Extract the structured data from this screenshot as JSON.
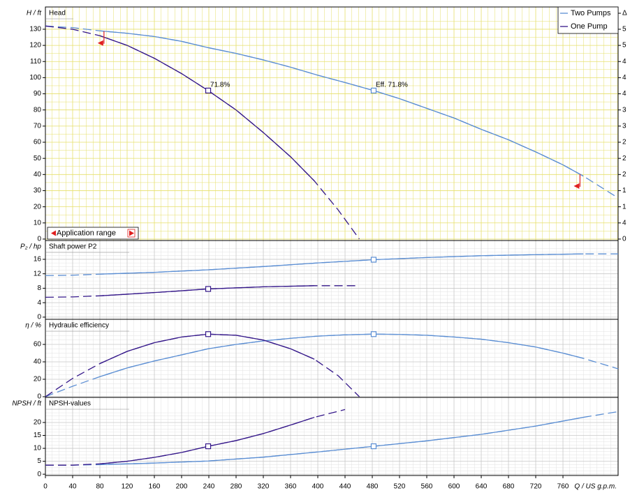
{
  "chart_data": [
    {
      "type": "line",
      "title": "Head",
      "ylabel": "H / ft",
      "xlim": [
        0,
        841
      ],
      "ylim": [
        -0.9,
        143.8
      ],
      "yticks": [
        0,
        10,
        20,
        30,
        40,
        50,
        60,
        70,
        80,
        90,
        100,
        110,
        120,
        130
      ],
      "grid": true,
      "grid_color": "#e6df6a",
      "y2_labels": [
        "Δ",
        "5",
        "5",
        "4",
        "4",
        "4",
        "3",
        "3",
        "2",
        "2",
        "2",
        "1",
        "1",
        "4",
        "0"
      ],
      "application_range": {
        "text": "Application range",
        "x": [
          86,
          785
        ]
      },
      "legend": "upper right",
      "series": [
        {
          "name": "Two Pumps",
          "color": "#5b8ed3",
          "solid": [
            80,
            790
          ],
          "point_x": 482,
          "point_label": "Eff.  71.8%",
          "x": [
            0,
            40,
            80,
            120,
            160,
            200,
            240,
            280,
            320,
            360,
            400,
            440,
            482,
            520,
            560,
            600,
            640,
            680,
            720,
            760,
            790,
            841
          ],
          "values": [
            132,
            131,
            129,
            127.5,
            125.5,
            122.5,
            118.5,
            115,
            111,
            106.5,
            101.5,
            97,
            92,
            87,
            81,
            75,
            68,
            61.5,
            54,
            46,
            39,
            25.5
          ]
        },
        {
          "name": "One Pump",
          "color": "#35188a",
          "solid": [
            80,
            395
          ],
          "point_x": 239,
          "point_label": "71.8%",
          "x": [
            0,
            40,
            80,
            120,
            160,
            200,
            239,
            280,
            320,
            360,
            395,
            430,
            461
          ],
          "values": [
            132,
            130,
            126,
            120,
            112,
            102.5,
            92,
            80,
            66,
            51,
            36,
            18,
            0
          ]
        }
      ]
    },
    {
      "type": "line",
      "title": "Shaft power P2",
      "ylabel": "P₂ / hp",
      "xlim": [
        0,
        841
      ],
      "ylim": [
        -0.6,
        21.2
      ],
      "yticks": [
        0,
        4,
        8,
        12,
        16
      ],
      "grid": true,
      "grid_color": "#c8c8c8",
      "series": [
        {
          "color": "#5b8ed3",
          "solid": [
            80,
            790
          ],
          "point_x": 482,
          "x": [
            0,
            40,
            80,
            160,
            239,
            320,
            400,
            482,
            560,
            640,
            720,
            790,
            841
          ],
          "values": [
            11.5,
            11.6,
            11.9,
            12.4,
            13.1,
            14,
            15,
            15.9,
            16.5,
            17,
            17.3,
            17.5,
            17.5
          ]
        },
        {
          "color": "#35188a",
          "solid": [
            80,
            395
          ],
          "point_x": 239,
          "x": [
            0,
            40,
            80,
            160,
            239,
            320,
            395,
            461
          ],
          "values": [
            5.5,
            5.6,
            5.9,
            6.8,
            7.8,
            8.4,
            8.7,
            8.7
          ]
        }
      ]
    },
    {
      "type": "line",
      "title": "Hydraulic efficiency",
      "ylabel": "η / %",
      "xlim": [
        0,
        841
      ],
      "ylim": [
        -0.8,
        88.8
      ],
      "yticks": [
        0,
        20,
        40,
        60
      ],
      "grid": true,
      "grid_color": "#c8c8c8",
      "series": [
        {
          "color": "#5b8ed3",
          "solid": [
            80,
            790
          ],
          "point_x": 482,
          "x": [
            0,
            40,
            80,
            120,
            160,
            200,
            239,
            280,
            320,
            360,
            400,
            440,
            482,
            520,
            560,
            600,
            640,
            680,
            720,
            760,
            790,
            841
          ],
          "values": [
            0,
            12,
            23,
            33,
            41,
            48,
            55,
            60,
            64,
            67,
            69.5,
            71,
            71.8,
            71.5,
            70.5,
            68.5,
            66,
            62,
            57,
            50,
            44,
            32
          ]
        },
        {
          "color": "#35188a",
          "solid": [
            80,
            395
          ],
          "point_x": 239,
          "x": [
            0,
            40,
            80,
            120,
            160,
            200,
            239,
            280,
            320,
            360,
            395,
            430,
            461
          ],
          "values": [
            0,
            21,
            38,
            52,
            62,
            68.5,
            71.8,
            70.5,
            65,
            55,
            43,
            24,
            0
          ]
        }
      ]
    },
    {
      "type": "line",
      "title": "NPSH-values",
      "ylabel": "NPSH / ft",
      "xlabel": "Q / US g.p.m.",
      "xlim": [
        0,
        841
      ],
      "ylim": [
        -0.5,
        29.7
      ],
      "xticks": [
        0,
        40,
        80,
        120,
        160,
        200,
        240,
        280,
        320,
        360,
        400,
        440,
        480,
        520,
        560,
        600,
        640,
        680,
        720,
        760
      ],
      "yticks": [
        0,
        5,
        10,
        15,
        20
      ],
      "grid": true,
      "grid_color": "#c8c8c8",
      "series": [
        {
          "color": "#5b8ed3",
          "solid": [
            80,
            790
          ],
          "point_x": 482,
          "x": [
            0,
            40,
            80,
            160,
            239,
            320,
            400,
            482,
            560,
            640,
            720,
            790,
            841
          ],
          "values": [
            3.5,
            3.5,
            3.7,
            4.3,
            5.1,
            6.6,
            8.6,
            10.8,
            12.9,
            15.4,
            18.6,
            22,
            24.2
          ]
        },
        {
          "color": "#35188a",
          "solid": [
            80,
            395
          ],
          "point_x": 239,
          "x": [
            0,
            40,
            80,
            120,
            160,
            200,
            239,
            280,
            320,
            360,
            395,
            440
          ],
          "values": [
            3.5,
            3.5,
            4,
            5,
            6.5,
            8.4,
            10.8,
            13,
            15.7,
            19,
            22,
            25
          ]
        }
      ]
    }
  ]
}
